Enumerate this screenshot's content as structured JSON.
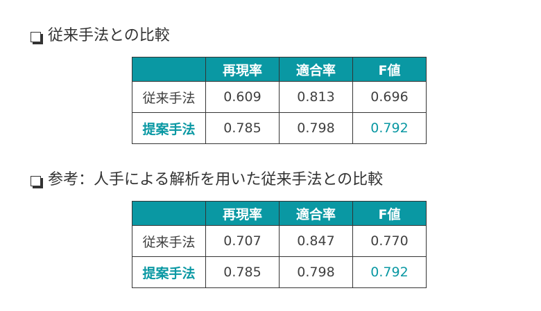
{
  "section1": {
    "title": "従来手法との比較",
    "headers": [
      "",
      "再現率",
      "適合率",
      "F値"
    ],
    "rows": [
      {
        "label": "従来手法",
        "values": [
          "0.609",
          "0.813",
          "0.696"
        ]
      },
      {
        "label": "提案手法",
        "values": [
          "0.785",
          "0.798",
          "0.792"
        ]
      }
    ]
  },
  "section2": {
    "title": "参考：人手による解析を用いた従来手法との比較",
    "headers": [
      "",
      "再現率",
      "適合率",
      "F値"
    ],
    "rows": [
      {
        "label": "従来手法",
        "values": [
          "0.707",
          "0.847",
          "0.770"
        ]
      },
      {
        "label": "提案手法",
        "values": [
          "0.785",
          "0.798",
          "0.792"
        ]
      }
    ]
  },
  "colors": {
    "accent": "#0a98a3",
    "text": "#404040",
    "border": "#333333"
  },
  "icons": {
    "bullet": "checkbox-icon"
  }
}
